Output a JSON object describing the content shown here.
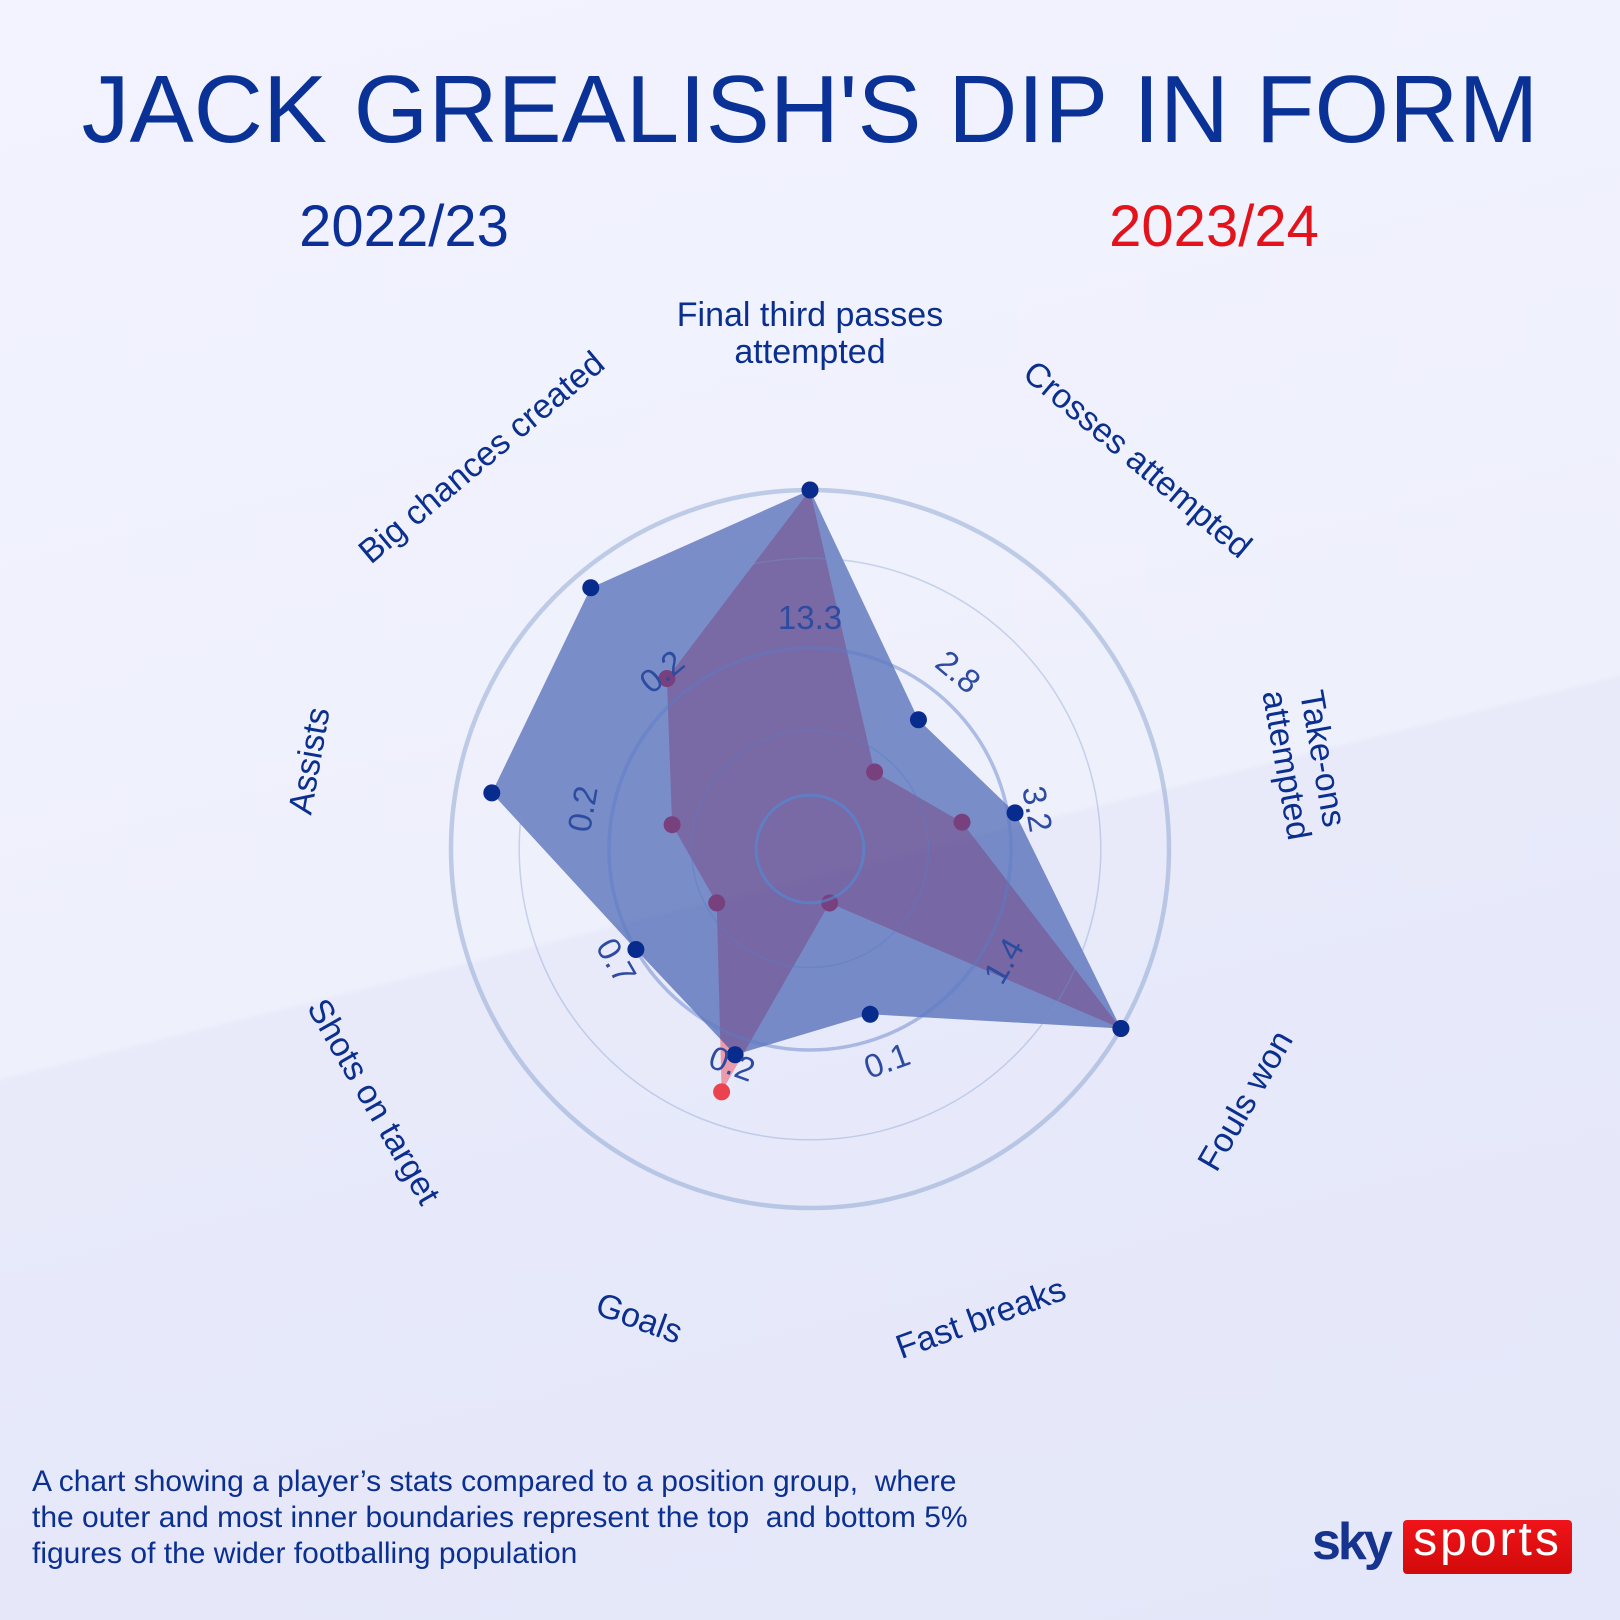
{
  "title": "JACK GREALISH'S DIP IN FORM",
  "legend": {
    "season_a": "2022/23",
    "season_b": "2023/24"
  },
  "axes": [
    {
      "label": "Final third passes\nattempted",
      "value_label": "13.3"
    },
    {
      "label": "Crosses attempted",
      "value_label": "2.8"
    },
    {
      "label": "Take-ons\nattempted",
      "value_label": "3.2"
    },
    {
      "label": "Fouls won",
      "value_label": "1.4"
    },
    {
      "label": "Fast breaks",
      "value_label": "0.1"
    },
    {
      "label": "Goals",
      "value_label": "0.2"
    },
    {
      "label": "Shots on target",
      "value_label": "0.7"
    },
    {
      "label": "Assists",
      "value_label": "0.2"
    },
    {
      "label": "Big chances created",
      "value_label": "0.2"
    }
  ],
  "footnote": "A chart showing a player’s stats compared to a position group,  where\nthe outer and most inner boundaries represent the top  and bottom 5%\nfigures of the wider footballing population",
  "logo": {
    "sky": "sky",
    "sports": "sports"
  },
  "colors": {
    "title": "#0a3296",
    "season_a": "#0b2f96",
    "season_b": "#e3131b",
    "series_a_fill": "#1e40a0",
    "series_a_dot": "#082b8e",
    "series_b_fill": "#f03c4b",
    "series_b_dot": "#ec4250",
    "logo_red": "#e10a0a"
  },
  "chart_data": {
    "type": "radar",
    "title": "JACK GREALISH'S DIP IN FORM",
    "categories": [
      "Final third passes attempted",
      "Crosses attempted",
      "Take-ons attempted",
      "Fouls won",
      "Fast breaks",
      "Goals",
      "Shots on target",
      "Assists",
      "Big chances created"
    ],
    "axis_value_labels": [
      "13.3",
      "2.8",
      "3.2",
      "1.4",
      "0.1",
      "0.2",
      "0.7",
      "0.2",
      "0.2"
    ],
    "series": [
      {
        "name": "2022/23",
        "color": "#1e40a0",
        "values": [
          1.0,
          0.47,
          0.58,
          1.0,
          0.49,
          0.61,
          0.56,
          0.9,
          0.95
        ]
      },
      {
        "name": "2023/24",
        "color": "#f03c4b",
        "values": [
          1.0,
          0.28,
          0.43,
          1.0,
          0.16,
          0.72,
          0.3,
          0.39,
          0.62
        ]
      }
    ],
    "rlim": [
      0,
      1
    ],
    "rings": [
      0.15,
      0.33,
      0.56,
      0.81,
      1.0
    ],
    "grid": true,
    "legend_position": "top",
    "annotation": "A chart showing a player’s stats compared to a position group, where the outer and most inner boundaries represent the top and bottom 5% figures of the wider footballing population"
  }
}
